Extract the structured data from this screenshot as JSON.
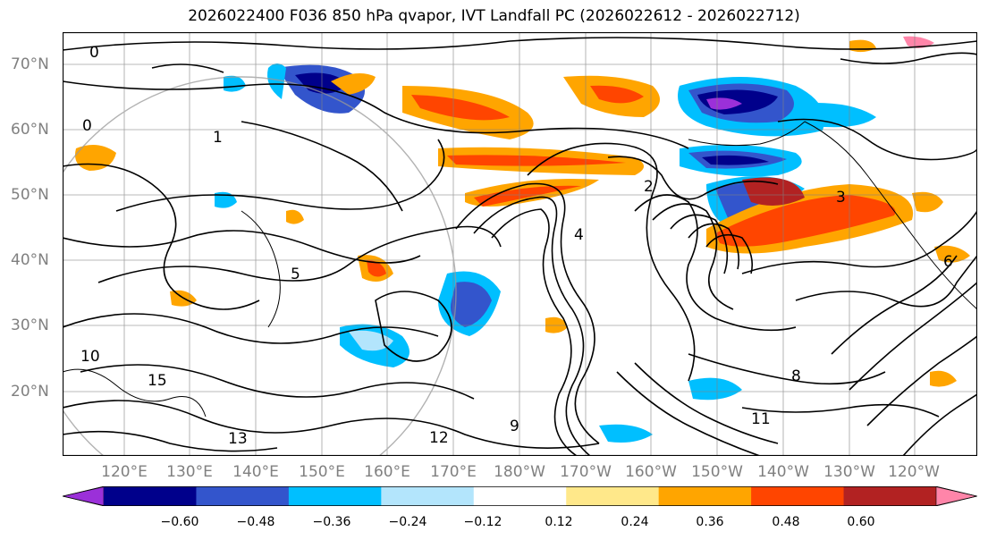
{
  "title": "2026022400 F036 850 hPa qvapor, IVT Landfall PC (2026022612 - 2026022712)",
  "latitude_labels": [
    "70°N",
    "60°N",
    "50°N",
    "40°N",
    "30°N",
    "20°N"
  ],
  "longitude_labels": [
    "120°E",
    "130°E",
    "140°E",
    "150°E",
    "160°E",
    "170°E",
    "180°W",
    "170°W",
    "160°W",
    "150°W",
    "140°W",
    "130°W",
    "120°W"
  ],
  "colorbar": {
    "ticks": [
      "−0.60",
      "−0.48",
      "−0.36",
      "−0.24",
      "−0.12",
      "0.12",
      "0.24",
      "0.36",
      "0.48",
      "0.60"
    ],
    "colors": [
      "#9b30d9",
      "#00008b",
      "#3355cc",
      "#00bfff",
      "#b3e5fc",
      "#ffffff",
      "#ffe88a",
      "#ffa500",
      "#ff4500",
      "#b22222",
      "#ff85a9"
    ]
  },
  "contour_labels": [
    "0",
    "0",
    "1",
    "2",
    "3",
    "4",
    "5",
    "6",
    "8",
    "9",
    "10",
    "11",
    "12",
    "13",
    "15"
  ],
  "colors": {
    "gridline": "#808080",
    "contour": "#000000",
    "axis_text": "#808080"
  }
}
